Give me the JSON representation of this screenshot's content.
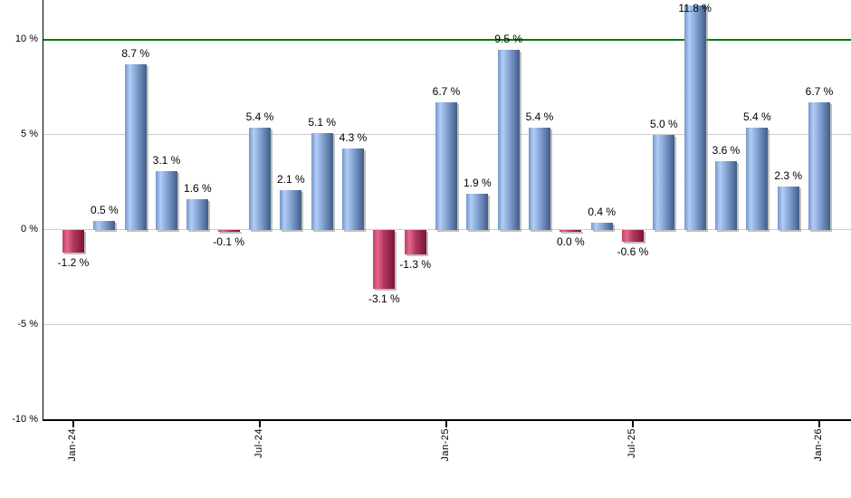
{
  "chart_data": {
    "type": "bar",
    "title": "",
    "xlabel": "",
    "ylabel": "",
    "values": [
      -1.2,
      0.5,
      8.7,
      3.1,
      1.6,
      -0.1,
      5.4,
      2.1,
      5.1,
      4.3,
      -3.1,
      -1.3,
      6.7,
      1.9,
      9.5,
      5.4,
      0.0,
      0.4,
      -0.6,
      5.0,
      11.8,
      3.6,
      5.4,
      2.3,
      6.7
    ],
    "bar_labels": [
      "-1.2 %",
      "0.5 %",
      "8.7 %",
      "3.1 %",
      "1.6 %",
      "-0.1 %",
      "5.4 %",
      "2.1 %",
      "5.1 %",
      "4.3 %",
      "-3.1 %",
      "-1.3 %",
      "6.7 %",
      "1.9 %",
      "9.5 %",
      "5.4 %",
      "0.0 %",
      "0.4 %",
      "-0.6 %",
      "5.0 %",
      "11.8 %",
      "3.6 %",
      "5.4 %",
      "2.3 %",
      "6.7 %"
    ],
    "x_ticks": [
      {
        "label": "Jan-24",
        "index": 0
      },
      {
        "label": "Jul-24",
        "index": 6
      },
      {
        "label": "Jan-25",
        "index": 12
      },
      {
        "label": "Jul-25",
        "index": 18
      },
      {
        "label": "Jan-26",
        "index": 24
      }
    ],
    "y_ticks": [
      {
        "label": "10 %",
        "value": 10
      },
      {
        "label": "5 %",
        "value": 5
      },
      {
        "label": "0 %",
        "value": 0
      },
      {
        "label": "-5 %",
        "value": -5
      },
      {
        "label": "-10 %",
        "value": -10
      }
    ],
    "ylim": [
      -10,
      12
    ],
    "grid": true,
    "legend": false,
    "reference_line": {
      "value": 10,
      "color": "#007a00"
    },
    "colors": {
      "positive_bar_gradient": [
        "#7596c9",
        "#b1cdf3",
        "#86a6d6",
        "#405c88"
      ],
      "negative_bar_gradient": [
        "#c23f63",
        "#e4688c",
        "#b03a5f",
        "#7a1434"
      ],
      "gridline": "#cccccc",
      "axis": "#000000",
      "label_text": "#000000",
      "shadow": "#8c8c8c",
      "background": "#ffffff"
    }
  }
}
